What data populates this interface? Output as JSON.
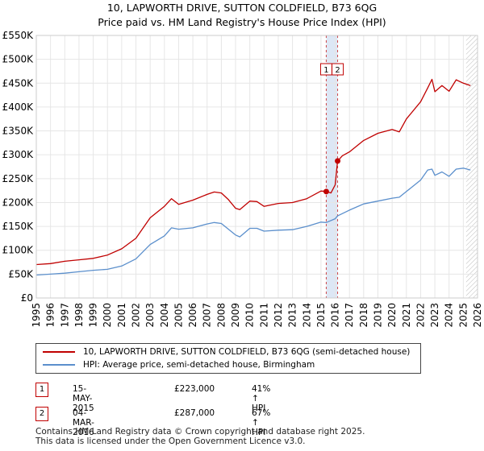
{
  "title": "10, LAPWORTH DRIVE, SUTTON COLDFIELD, B73 6QG",
  "subtitle": "Price paid vs. HM Land Registry's House Price Index (HPI)",
  "colors": {
    "property": "#c00000",
    "hpi": "#5b8fcc",
    "grid": "#e6e6e6",
    "band": "#dde7f5",
    "marker_border": "#c00000"
  },
  "chart_data": {
    "type": "line",
    "title": "10, LAPWORTH DRIVE, SUTTON COLDFIELD, B73 6QG",
    "xlabel": "",
    "ylabel": "",
    "xlim": [
      1995,
      2026
    ],
    "ylim": [
      0,
      550000
    ],
    "y_ticks": [
      {
        "value": 0,
        "label": "£0"
      },
      {
        "value": 50000,
        "label": "£50K"
      },
      {
        "value": 100000,
        "label": "£100K"
      },
      {
        "value": 150000,
        "label": "£150K"
      },
      {
        "value": 200000,
        "label": "£200K"
      },
      {
        "value": 250000,
        "label": "£250K"
      },
      {
        "value": 300000,
        "label": "£300K"
      },
      {
        "value": 350000,
        "label": "£350K"
      },
      {
        "value": 400000,
        "label": "£400K"
      },
      {
        "value": 450000,
        "label": "£450K"
      },
      {
        "value": 500000,
        "label": "£500K"
      },
      {
        "value": 550000,
        "label": "£550K"
      }
    ],
    "x_ticks": [
      "1995",
      "1996",
      "1997",
      "1998",
      "1999",
      "2000",
      "2001",
      "2002",
      "2003",
      "2004",
      "2005",
      "2006",
      "2007",
      "2008",
      "2009",
      "2010",
      "2011",
      "2012",
      "2013",
      "2014",
      "2015",
      "2016",
      "2017",
      "2018",
      "2019",
      "2020",
      "2021",
      "2022",
      "2023",
      "2024",
      "2025",
      "2026"
    ],
    "sale_band": [
      2015.37,
      2016.17
    ],
    "forecast_start": 2025.2,
    "series": [
      {
        "name": "10, LAPWORTH DRIVE, SUTTON COLDFIELD, B73 6QG (semi-detached house)",
        "x": [
          1995,
          1996,
          1997,
          1998,
          1999,
          2000,
          2001,
          2002,
          2003,
          2004,
          2004.5,
          2005,
          2006,
          2007,
          2007.5,
          2008,
          2008.5,
          2009,
          2009.3,
          2010,
          2010.5,
          2011,
          2012,
          2013,
          2014,
          2015,
          2015.37,
          2015.7,
          2016.0,
          2016.17,
          2016.5,
          2017,
          2018,
          2019,
          2020,
          2020.5,
          2021,
          2022,
          2022.5,
          2022.8,
          2023,
          2023.5,
          2024,
          2024.5,
          2025,
          2025.5
        ],
        "y": [
          70000,
          72000,
          77000,
          80000,
          83000,
          90000,
          103000,
          125000,
          168000,
          192000,
          208000,
          196000,
          205000,
          217000,
          222000,
          220000,
          206000,
          188000,
          185000,
          203000,
          202000,
          192000,
          198000,
          200000,
          208000,
          224000,
          223000,
          220000,
          237000,
          287000,
          298000,
          306000,
          330000,
          345000,
          353000,
          348000,
          375000,
          411000,
          440000,
          458000,
          432000,
          445000,
          433000,
          457000,
          450000,
          445000
        ]
      },
      {
        "name": "HPI: Average price, semi-detached house, Birmingham",
        "x": [
          1995,
          1996,
          1997,
          1998,
          1999,
          2000,
          2001,
          2002,
          2003,
          2004,
          2004.5,
          2005,
          2006,
          2007,
          2007.5,
          2008,
          2008.5,
          2009,
          2009.3,
          2010,
          2010.5,
          2011,
          2012,
          2013,
          2014,
          2015,
          2015.37,
          2016,
          2016.17,
          2017,
          2018,
          2019,
          2020,
          2020.5,
          2021,
          2022,
          2022.5,
          2022.8,
          2023,
          2023.5,
          2024,
          2024.5,
          2025,
          2025.5
        ],
        "y": [
          48000,
          50000,
          52000,
          55000,
          58000,
          60000,
          67000,
          82000,
          112000,
          130000,
          147000,
          144000,
          147000,
          155000,
          158000,
          156000,
          144000,
          132000,
          128000,
          146000,
          146000,
          140000,
          142000,
          143000,
          150000,
          159000,
          158000,
          166000,
          172000,
          184000,
          197000,
          203000,
          209000,
          211000,
          223000,
          247000,
          268000,
          270000,
          257000,
          264000,
          255000,
          270000,
          272000,
          268000
        ]
      }
    ],
    "annotations": [
      {
        "label": "1",
        "x": 2015.37,
        "y": 223000
      },
      {
        "label": "2",
        "x": 2016.17,
        "y": 287000
      }
    ]
  },
  "legend": [
    {
      "label": "10, LAPWORTH DRIVE, SUTTON COLDFIELD, B73 6QG (semi-detached house)"
    },
    {
      "label": "HPI: Average price, semi-detached house, Birmingham"
    }
  ],
  "transactions": [
    {
      "num": "1",
      "date": "15-MAY-2015",
      "price": "£223,000",
      "hpi": "41% ↑ HPI"
    },
    {
      "num": "2",
      "date": "04-MAR-2016",
      "price": "£287,000",
      "hpi": "67% ↑ HPI"
    }
  ],
  "footer": {
    "line1": "Contains HM Land Registry data © Crown copyright and database right 2025.",
    "line2": "This data is licensed under the Open Government Licence v3.0."
  }
}
